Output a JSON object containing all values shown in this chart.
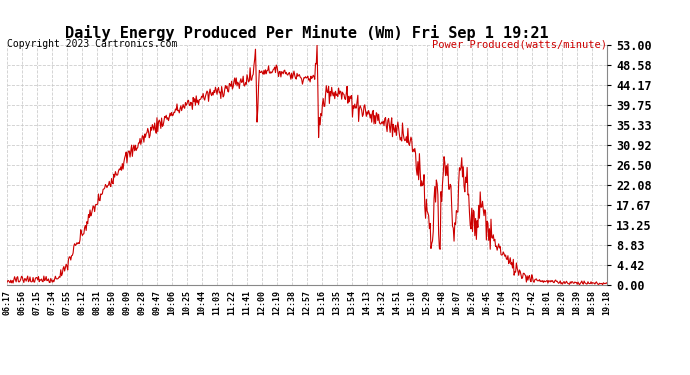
{
  "title": "Daily Energy Produced Per Minute (Wm) Fri Sep 1 19:21",
  "copyright": "Copyright 2023 Cartronics.com",
  "legend_label": "Power Produced(watts/minute)",
  "ylabel_right_values": [
    53.0,
    48.58,
    44.17,
    39.75,
    35.33,
    30.92,
    26.5,
    22.08,
    17.67,
    13.25,
    8.83,
    4.42,
    0.0
  ],
  "ymax": 53.0,
  "ymin": 0.0,
  "line_color": "#cc0000",
  "bg_color": "#ffffff",
  "grid_color": "#c8c8c8",
  "title_color": "#000000",
  "copyright_color": "#000000",
  "legend_color": "#cc0000",
  "xtick_labels": [
    "06:17",
    "06:56",
    "07:15",
    "07:34",
    "07:55",
    "08:12",
    "08:31",
    "08:50",
    "09:09",
    "09:28",
    "09:47",
    "10:06",
    "10:25",
    "10:44",
    "11:03",
    "11:22",
    "11:41",
    "12:00",
    "12:19",
    "12:38",
    "12:57",
    "13:16",
    "13:35",
    "13:54",
    "14:13",
    "14:32",
    "14:51",
    "15:10",
    "15:29",
    "15:48",
    "16:07",
    "16:26",
    "16:45",
    "17:04",
    "17:23",
    "17:42",
    "18:01",
    "18:20",
    "18:39",
    "18:58",
    "19:18"
  ],
  "figsize": [
    6.9,
    3.75
  ],
  "dpi": 100
}
